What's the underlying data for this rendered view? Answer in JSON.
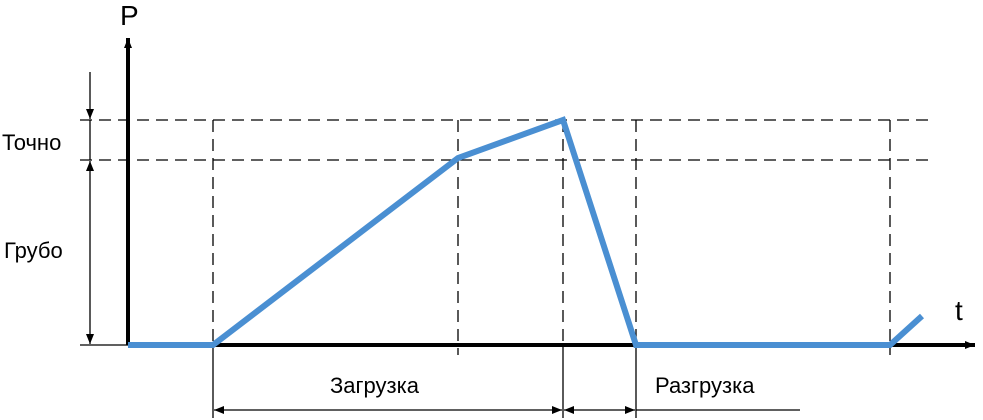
{
  "axes": {
    "y_label": "P",
    "x_label": "t"
  },
  "zones": {
    "fine": "Точно",
    "coarse": "Грубо"
  },
  "phases": {
    "loading": "Загрузка",
    "unloading": "Разгрузка"
  }
}
